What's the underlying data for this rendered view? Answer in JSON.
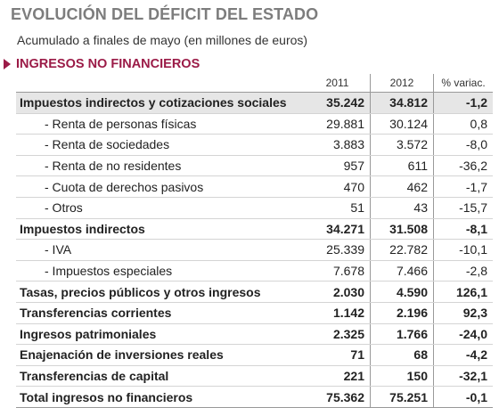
{
  "title": "EVOLUCIÓN DEL DÉFICIT DEL ESTADO",
  "subtitle": "Acumulado a finales de mayo (en millones de euros)",
  "section": "INGRESOS NO FINANCIEROS",
  "headers": {
    "label": "",
    "y2011": "2011",
    "y2012": "2012",
    "var": "% variac."
  },
  "rows": [
    {
      "label": "Impuestos indirectos y cotizaciones sociales",
      "y2011": "35.242",
      "y2012": "34.812",
      "var": "-1,2"
    },
    {
      "label": "- Renta de personas físicas",
      "y2011": "29.881",
      "y2012": "30.124",
      "var": "0,8"
    },
    {
      "label": "- Renta de sociedades",
      "y2011": "3.883",
      "y2012": "3.572",
      "var": "-8,0"
    },
    {
      "label": "- Renta de no residentes",
      "y2011": "957",
      "y2012": "611",
      "var": "-36,2"
    },
    {
      "label": "- Cuota de derechos pasivos",
      "y2011": "470",
      "y2012": "462",
      "var": "-1,7"
    },
    {
      "label": "- Otros",
      "y2011": "51",
      "y2012": "43",
      "var": "-15,7"
    },
    {
      "label": "Impuestos indirectos",
      "y2011": "34.271",
      "y2012": "31.508",
      "var": "-8,1"
    },
    {
      "label": "- IVA",
      "y2011": "25.339",
      "y2012": "22.782",
      "var": "-10,1"
    },
    {
      "label": "- Impuestos especiales",
      "y2011": "7.678",
      "y2012": "7.466",
      "var": "-2,8"
    },
    {
      "label": "Tasas, precios públicos y otros ingresos",
      "y2011": "2.030",
      "y2012": "4.590",
      "var": "126,1"
    },
    {
      "label": "Transferencias corrientes",
      "y2011": "1.142",
      "y2012": "2.196",
      "var": "92,3"
    },
    {
      "label": "Ingresos patrimoniales",
      "y2011": "2.325",
      "y2012": "1.766",
      "var": "-24,0"
    },
    {
      "label": "Enajenación de inversiones reales",
      "y2011": "71",
      "y2012": "68",
      "var": "-4,2"
    },
    {
      "label": "Transferencias de capital",
      "y2011": "221",
      "y2012": "150",
      "var": "-32,1"
    },
    {
      "label": "Total ingresos no financieros",
      "y2011": "75.362",
      "y2012": "75.251",
      "var": "-0,1"
    }
  ],
  "colors": {
    "title": "#7d7d7d",
    "accent": "#9b1b47",
    "shade": "#e6e6e6"
  }
}
